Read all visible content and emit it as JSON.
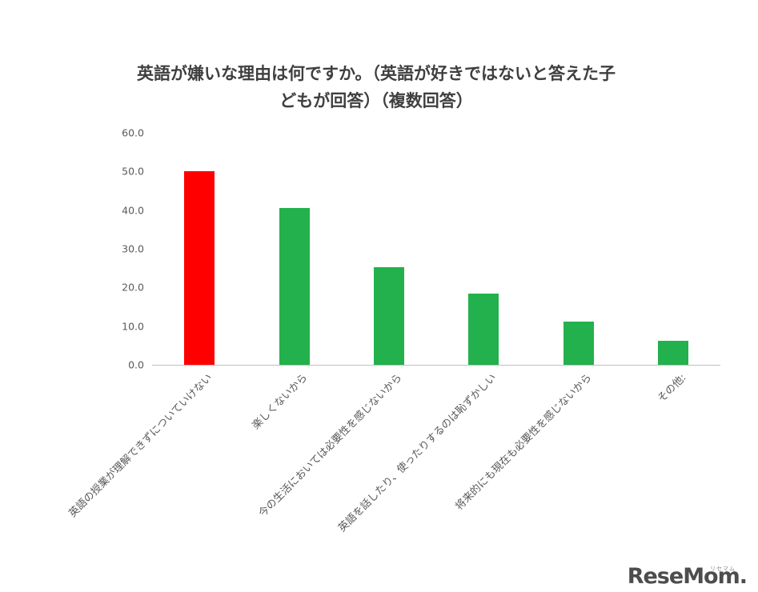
{
  "title": {
    "lines": [
      "英語が嫌いな理由は何ですか。（英語が好きではないと答えた子",
      "どもが回答）（複数回答）"
    ]
  },
  "chart_data": {
    "type": "bar",
    "title": "英語が嫌いな理由は何ですか。（英語が好きではないと答えた子どもが回答）（複数回答）",
    "categories": [
      "英語の授業が理解できずについていけない",
      "楽しくないから",
      "今の生活においては必要性を感じないから",
      "英語を話したり、使ったりするのは恥ずかしい",
      "将来的にも現在も必要性を感じないから",
      "その他:"
    ],
    "values": [
      50.0,
      40.6,
      25.3,
      18.4,
      11.1,
      6.3
    ],
    "bar_colors": [
      "#ff0000",
      "#22b14c",
      "#22b14c",
      "#22b14c",
      "#22b14c",
      "#22b14c"
    ],
    "xlabel": "",
    "ylabel": "",
    "ylim": [
      0,
      60
    ],
    "ytick_labels": [
      "0.0",
      "10.0",
      "20.0",
      "30.0",
      "40.0",
      "50.0",
      "60.0"
    ],
    "grid": false,
    "legend": false
  },
  "logo": {
    "text": "ReseMom.",
    "small": "リセマム"
  },
  "colors": {
    "axis_line": "#bfbfbf",
    "tick_text": "#595959",
    "title_text": "#3f3f3f"
  }
}
